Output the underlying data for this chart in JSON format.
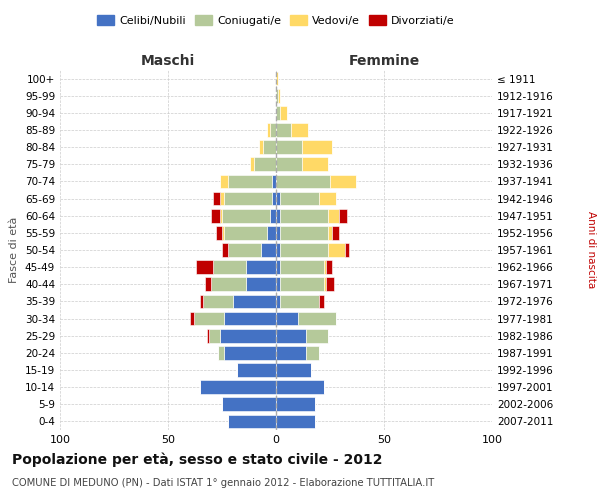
{
  "age_groups": [
    "0-4",
    "5-9",
    "10-14",
    "15-19",
    "20-24",
    "25-29",
    "30-34",
    "35-39",
    "40-44",
    "45-49",
    "50-54",
    "55-59",
    "60-64",
    "65-69",
    "70-74",
    "75-79",
    "80-84",
    "85-89",
    "90-94",
    "95-99",
    "100+"
  ],
  "birth_years": [
    "2007-2011",
    "2002-2006",
    "1997-2001",
    "1992-1996",
    "1987-1991",
    "1982-1986",
    "1977-1981",
    "1972-1976",
    "1967-1971",
    "1962-1966",
    "1957-1961",
    "1952-1956",
    "1947-1951",
    "1942-1946",
    "1937-1941",
    "1932-1936",
    "1927-1931",
    "1922-1926",
    "1917-1921",
    "1912-1916",
    "≤ 1911"
  ],
  "males": {
    "celibi": [
      22,
      25,
      35,
      18,
      24,
      26,
      24,
      20,
      14,
      14,
      7,
      4,
      3,
      2,
      2,
      0,
      0,
      0,
      0,
      0,
      0
    ],
    "coniugati": [
      0,
      0,
      0,
      0,
      3,
      5,
      14,
      14,
      16,
      15,
      15,
      20,
      22,
      22,
      20,
      10,
      6,
      3,
      0,
      0,
      0
    ],
    "vedovi": [
      0,
      0,
      0,
      0,
      0,
      0,
      0,
      0,
      0,
      0,
      0,
      1,
      1,
      2,
      4,
      2,
      2,
      1,
      0,
      0,
      0
    ],
    "divorziati": [
      0,
      0,
      0,
      0,
      0,
      1,
      2,
      1,
      3,
      8,
      3,
      3,
      4,
      3,
      0,
      0,
      0,
      0,
      0,
      0,
      0
    ]
  },
  "females": {
    "nubili": [
      18,
      18,
      22,
      16,
      14,
      14,
      10,
      2,
      2,
      2,
      2,
      2,
      2,
      2,
      0,
      0,
      0,
      0,
      0,
      0,
      0
    ],
    "coniugate": [
      0,
      0,
      0,
      0,
      6,
      10,
      18,
      18,
      20,
      20,
      22,
      22,
      22,
      18,
      25,
      12,
      12,
      7,
      2,
      1,
      0
    ],
    "vedove": [
      0,
      0,
      0,
      0,
      0,
      0,
      0,
      0,
      1,
      1,
      8,
      2,
      5,
      8,
      12,
      12,
      14,
      8,
      3,
      1,
      1
    ],
    "divorziate": [
      0,
      0,
      0,
      0,
      0,
      0,
      0,
      2,
      4,
      3,
      2,
      3,
      4,
      0,
      0,
      0,
      0,
      0,
      0,
      0,
      0
    ]
  },
  "colors": {
    "celibi": "#4472C4",
    "coniugati": "#B5C99A",
    "vedovi": "#FFD966",
    "divorziati": "#C00000"
  },
  "xlim": 100,
  "title": "Popolazione per età, sesso e stato civile - 2012",
  "subtitle": "COMUNE DI MEDUNO (PN) - Dati ISTAT 1° gennaio 2012 - Elaborazione TUTTITALIA.IT",
  "legend_labels": [
    "Celibi/Nubili",
    "Coniugati/e",
    "Vedovi/e",
    "Divorziati/e"
  ],
  "plot_bg_color": "#ffffff"
}
